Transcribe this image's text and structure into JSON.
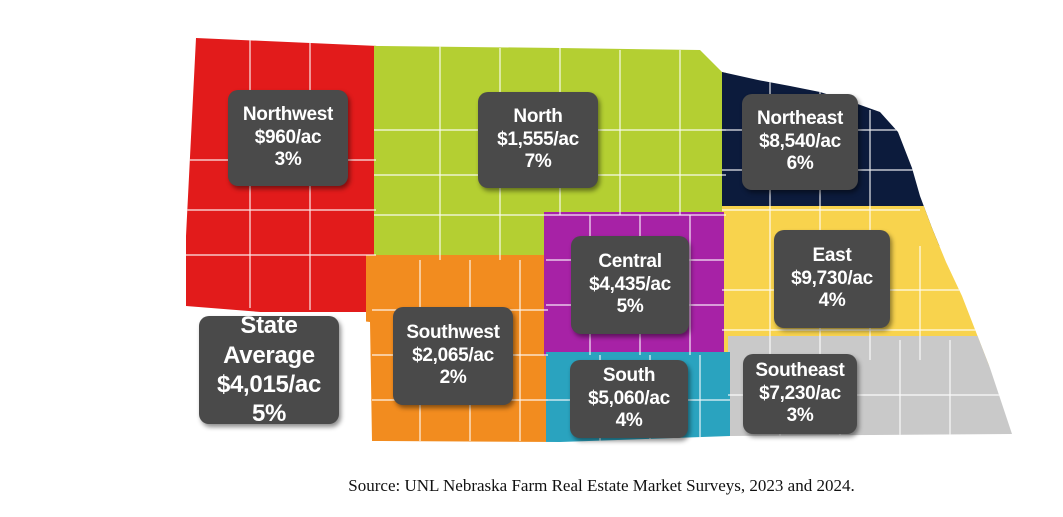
{
  "regions": [
    {
      "id": "northwest",
      "name": "Northwest",
      "value": "$960/ac",
      "change": "3%",
      "color": "#e21b1b"
    },
    {
      "id": "north",
      "name": "North",
      "value": "$1,555/ac",
      "change": "7%",
      "color": "#b4cf32"
    },
    {
      "id": "northeast",
      "name": "Northeast",
      "value": "$8,540/ac",
      "change": "6%",
      "color": "#0c1b3c"
    },
    {
      "id": "central",
      "name": "Central",
      "value": "$4,435/ac",
      "change": "5%",
      "color": "#a722a6"
    },
    {
      "id": "east",
      "name": "East",
      "value": "$9,730/ac",
      "change": "4%",
      "color": "#f8d34d"
    },
    {
      "id": "southwest",
      "name": "Southwest",
      "value": "$2,065/ac",
      "change": "2%",
      "color": "#f28c1f"
    },
    {
      "id": "south",
      "name": "South",
      "value": "$5,060/ac",
      "change": "4%",
      "color": "#2aa3bf"
    },
    {
      "id": "southeast",
      "name": "Southeast",
      "value": "$7,230/ac",
      "change": "3%",
      "color": "#c9c9c9"
    }
  ],
  "state_average": {
    "name": "State Average",
    "value": "$4,015/ac",
    "change": "5%"
  },
  "source": "Source:  UNL Nebraska Farm Real Estate Market Surveys, 2023 and 2024."
}
